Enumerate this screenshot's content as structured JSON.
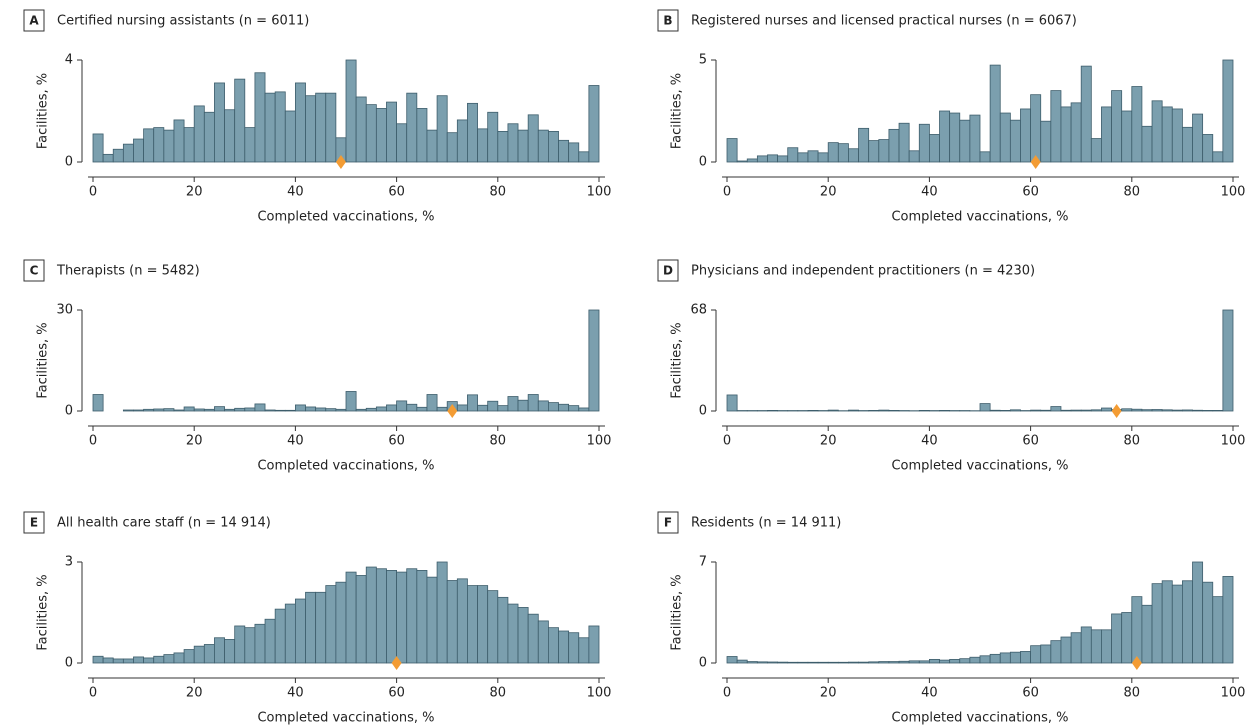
{
  "chart_data": [
    {
      "type": "histogram",
      "panel": "A",
      "title": "Certified nursing assistants (n = 6011)",
      "bins": [
        0,
        2,
        4,
        6,
        8,
        10,
        12,
        14,
        16,
        18,
        20,
        22,
        24,
        26,
        28,
        30,
        32,
        34,
        36,
        38,
        40,
        42,
        44,
        46,
        48,
        50,
        52,
        54,
        56,
        58,
        60,
        62,
        64,
        66,
        68,
        70,
        72,
        74,
        76,
        78,
        80,
        82,
        84,
        86,
        88,
        90,
        92,
        94,
        96,
        98,
        100
      ],
      "values": [
        1.1,
        0.3,
        0.5,
        0.7,
        0.9,
        1.3,
        1.35,
        1.25,
        1.65,
        1.35,
        2.2,
        1.95,
        3.1,
        2.05,
        3.25,
        1.35,
        3.5,
        2.7,
        2.75,
        2.0,
        3.1,
        2.6,
        2.7,
        2.7,
        0.95,
        4.0,
        2.55,
        2.25,
        2.1,
        2.35,
        1.5,
        2.7,
        2.1,
        1.25,
        2.6,
        1.15,
        1.65,
        2.3,
        1.3,
        1.95,
        1.2,
        1.5,
        1.25,
        1.85,
        1.25,
        1.2,
        0.85,
        0.75,
        0.4,
        3.0
      ],
      "median": 49,
      "xlim": [
        0,
        100
      ],
      "xticks": [
        0,
        20,
        40,
        60,
        80,
        100
      ],
      "ylim": [
        0,
        4
      ],
      "yticks": [
        0,
        4
      ],
      "x_label": "Completed vaccinations, %",
      "y_label": "Facilities, %",
      "color": "#7b9fae",
      "median_color": "#f39c34"
    },
    {
      "type": "histogram",
      "panel": "B",
      "title": "Registered nurses and licensed practical nurses (n = 6067)",
      "bins": [
        0,
        2,
        4,
        6,
        8,
        10,
        12,
        14,
        16,
        18,
        20,
        22,
        24,
        26,
        28,
        30,
        32,
        34,
        36,
        38,
        40,
        42,
        44,
        46,
        48,
        50,
        52,
        54,
        56,
        58,
        60,
        62,
        64,
        66,
        68,
        70,
        72,
        74,
        76,
        78,
        80,
        82,
        84,
        86,
        88,
        90,
        92,
        94,
        96,
        98,
        100
      ],
      "values": [
        1.15,
        0.05,
        0.15,
        0.3,
        0.35,
        0.3,
        0.7,
        0.45,
        0.55,
        0.45,
        0.95,
        0.9,
        0.65,
        1.65,
        1.05,
        1.1,
        1.6,
        1.9,
        0.55,
        1.85,
        1.35,
        2.5,
        2.4,
        2.05,
        2.3,
        0.5,
        4.75,
        2.4,
        2.05,
        2.6,
        3.3,
        2.0,
        3.5,
        2.7,
        2.9,
        4.7,
        1.15,
        2.7,
        3.5,
        2.5,
        3.7,
        1.75,
        3.0,
        2.7,
        2.6,
        1.7,
        2.35,
        1.35,
        0.5,
        5.0
      ],
      "median": 61,
      "xlim": [
        0,
        100
      ],
      "xticks": [
        0,
        20,
        40,
        60,
        80,
        100
      ],
      "ylim": [
        0,
        5
      ],
      "yticks": [
        0,
        5
      ],
      "x_label": "Completed vaccinations, %",
      "y_label": "Facilities, %",
      "color": "#7b9fae",
      "median_color": "#f39c34"
    },
    {
      "type": "histogram",
      "panel": "C",
      "title": "Therapists (n = 5482)",
      "bins": [
        0,
        2,
        4,
        6,
        8,
        10,
        12,
        14,
        16,
        18,
        20,
        22,
        24,
        26,
        28,
        30,
        32,
        34,
        36,
        38,
        40,
        42,
        44,
        46,
        48,
        50,
        52,
        54,
        56,
        58,
        60,
        62,
        64,
        66,
        68,
        70,
        72,
        74,
        76,
        78,
        80,
        82,
        84,
        86,
        88,
        90,
        92,
        94,
        96,
        98,
        100
      ],
      "values": [
        4.9,
        0,
        0,
        0.3,
        0.3,
        0.5,
        0.6,
        0.7,
        0.3,
        1.2,
        0.6,
        0.5,
        1.3,
        0.5,
        0.8,
        0.9,
        2.1,
        0.3,
        0.2,
        0.2,
        1.8,
        1.2,
        0.9,
        0.7,
        0.5,
        5.8,
        0.5,
        0.8,
        1.2,
        1.8,
        3.0,
        2.0,
        1.1,
        4.9,
        1.1,
        2.8,
        1.8,
        4.8,
        1.7,
        2.9,
        1.6,
        4.3,
        3.2,
        4.9,
        3.0,
        2.5,
        2.0,
        1.6,
        0.9,
        30
      ],
      "median": 71,
      "xlim": [
        0,
        100
      ],
      "xticks": [
        0,
        20,
        40,
        60,
        80,
        100
      ],
      "ylim": [
        0,
        30
      ],
      "yticks": [
        0,
        30
      ],
      "x_label": "Completed vaccinations, %",
      "y_label": "Facilities, %",
      "color": "#7b9fae",
      "median_color": "#f39c34"
    },
    {
      "type": "histogram",
      "panel": "D",
      "title": "Physicians and independent practitioners (n = 4230)",
      "bins": [
        0,
        2,
        4,
        6,
        8,
        10,
        12,
        14,
        16,
        18,
        20,
        22,
        24,
        26,
        28,
        30,
        32,
        34,
        36,
        38,
        40,
        42,
        44,
        46,
        48,
        50,
        52,
        54,
        56,
        58,
        60,
        62,
        64,
        66,
        68,
        70,
        72,
        74,
        76,
        78,
        80,
        82,
        84,
        86,
        88,
        90,
        92,
        94,
        96,
        98,
        100
      ],
      "values": [
        10.8,
        0.3,
        0.3,
        0.3,
        0.4,
        0.3,
        0.3,
        0.3,
        0.4,
        0.3,
        0.6,
        0.2,
        0.6,
        0.3,
        0.4,
        0.6,
        0.4,
        0.3,
        0.2,
        0.4,
        0.3,
        0.4,
        0.3,
        0.3,
        0.2,
        5.0,
        0.5,
        0.4,
        0.8,
        0.3,
        0.6,
        0.5,
        3.0,
        0.5,
        0.6,
        0.6,
        0.8,
        2.0,
        1.0,
        1.5,
        1.2,
        0.9,
        1.0,
        0.8,
        0.6,
        0.7,
        0.5,
        0.4,
        0.4,
        68
      ],
      "median": 77,
      "xlim": [
        0,
        100
      ],
      "xticks": [
        0,
        20,
        40,
        60,
        80,
        100
      ],
      "ylim": [
        0,
        68
      ],
      "yticks": [
        0,
        68
      ],
      "x_label": "Completed vaccinations, %",
      "y_label": "Facilities, %",
      "color": "#7b9fae",
      "median_color": "#f39c34"
    },
    {
      "type": "histogram",
      "panel": "E",
      "title": "All health care staff (n = 14 914)",
      "bins": [
        0,
        2,
        4,
        6,
        8,
        10,
        12,
        14,
        16,
        18,
        20,
        22,
        24,
        26,
        28,
        30,
        32,
        34,
        36,
        38,
        40,
        42,
        44,
        46,
        48,
        50,
        52,
        54,
        56,
        58,
        60,
        62,
        64,
        66,
        68,
        70,
        72,
        74,
        76,
        78,
        80,
        82,
        84,
        86,
        88,
        90,
        92,
        94,
        96,
        98,
        100
      ],
      "values": [
        0.2,
        0.15,
        0.12,
        0.12,
        0.18,
        0.15,
        0.2,
        0.25,
        0.3,
        0.4,
        0.5,
        0.55,
        0.75,
        0.7,
        1.1,
        1.05,
        1.15,
        1.3,
        1.6,
        1.75,
        1.9,
        2.1,
        2.1,
        2.3,
        2.4,
        2.7,
        2.6,
        2.85,
        2.8,
        2.75,
        2.7,
        2.8,
        2.75,
        2.55,
        3.0,
        2.45,
        2.5,
        2.3,
        2.3,
        2.15,
        1.95,
        1.75,
        1.65,
        1.45,
        1.25,
        1.05,
        0.95,
        0.9,
        0.75,
        1.1
      ],
      "median": 60,
      "xlim": [
        0,
        100
      ],
      "xticks": [
        0,
        20,
        40,
        60,
        80,
        100
      ],
      "ylim": [
        0,
        3
      ],
      "yticks": [
        0,
        3
      ],
      "x_label": "Completed vaccinations, %",
      "y_label": "Facilities, %",
      "color": "#7b9fae",
      "median_color": "#f39c34"
    },
    {
      "type": "histogram",
      "panel": "F",
      "title": "Residents (n = 14 911)",
      "bins": [
        0,
        2,
        4,
        6,
        8,
        10,
        12,
        14,
        16,
        18,
        20,
        22,
        24,
        26,
        28,
        30,
        32,
        34,
        36,
        38,
        40,
        42,
        44,
        46,
        48,
        50,
        52,
        54,
        56,
        58,
        60,
        62,
        64,
        66,
        68,
        70,
        72,
        74,
        76,
        78,
        80,
        82,
        84,
        86,
        88,
        90,
        92,
        94,
        96,
        98,
        100
      ],
      "values": [
        0.45,
        0.2,
        0.1,
        0.08,
        0.07,
        0.06,
        0.05,
        0.05,
        0.05,
        0.05,
        0.05,
        0.05,
        0.06,
        0.06,
        0.08,
        0.1,
        0.1,
        0.12,
        0.15,
        0.15,
        0.25,
        0.2,
        0.25,
        0.3,
        0.4,
        0.5,
        0.6,
        0.7,
        0.75,
        0.8,
        1.2,
        1.25,
        1.55,
        1.8,
        2.1,
        2.5,
        2.3,
        2.3,
        3.4,
        3.5,
        4.6,
        4.0,
        5.5,
        5.7,
        5.4,
        5.7,
        7.0,
        5.6,
        4.6,
        6.0
      ],
      "median": 81,
      "xlim": [
        0,
        100
      ],
      "xticks": [
        0,
        20,
        40,
        60,
        80,
        100
      ],
      "ylim": [
        0,
        7
      ],
      "yticks": [
        0,
        7
      ],
      "x_label": "Completed vaccinations, %",
      "y_label": "Facilities, %",
      "color": "#7b9fae",
      "median_color": "#f39c34"
    }
  ]
}
